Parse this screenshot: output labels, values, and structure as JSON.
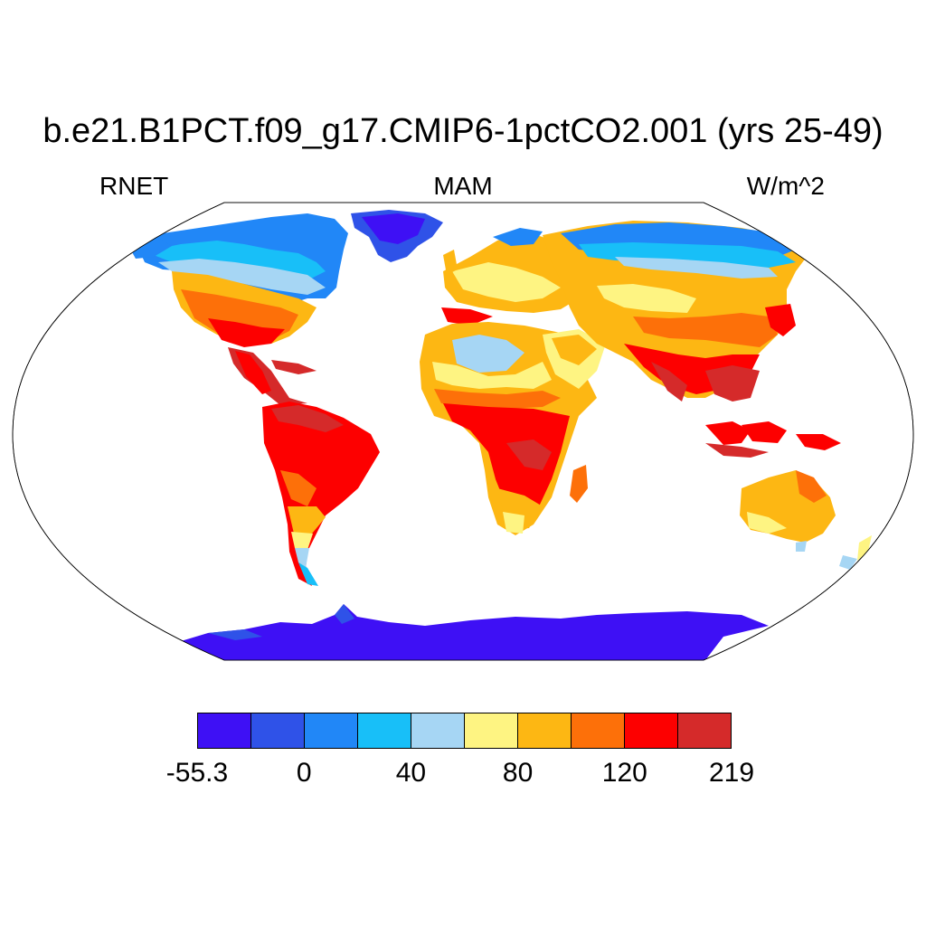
{
  "title": "b.e21.B1PCT.f09_g17.CMIP6-1pctCO2.001 (yrs 25-49)",
  "left_string": "RNET",
  "center_string": "MAM",
  "right_string": "W/m^2",
  "colorbar": {
    "colors": [
      "#3e10f5",
      "#2f52e8",
      "#2187f7",
      "#18bff8",
      "#a6d6f4",
      "#fef482",
      "#fdb713",
      "#fd7009",
      "#fd0000",
      "#d52a2a"
    ],
    "labels": [
      "-55.3",
      "0",
      "40",
      "80",
      "120",
      "219"
    ]
  },
  "map_colors": {
    "ocean": "#ffffff",
    "coast": "#000000"
  }
}
